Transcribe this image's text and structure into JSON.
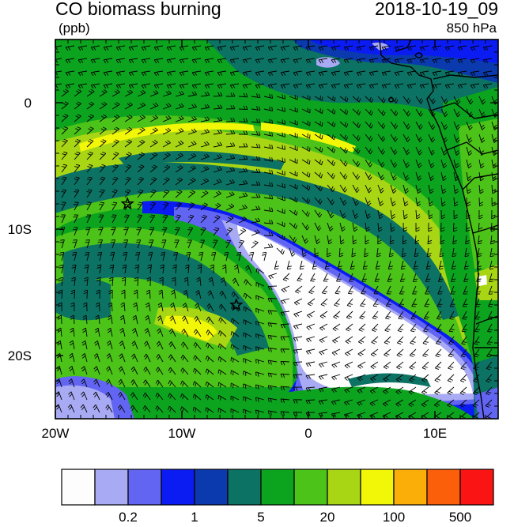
{
  "header": {
    "title_left": "CO biomass burning",
    "title_right": "2018-10-19_09",
    "units": "(ppb)",
    "level": "850 hPa"
  },
  "axes": {
    "x_ticks": [
      {
        "value": -20,
        "label": "20W"
      },
      {
        "value": -10,
        "label": "10W"
      },
      {
        "value": 0,
        "label": "0"
      },
      {
        "value": 10,
        "label": "10E"
      }
    ],
    "y_ticks": [
      {
        "value": 0,
        "label": "0"
      },
      {
        "value": -10,
        "label": "10S"
      },
      {
        "value": -20,
        "label": "20S"
      }
    ],
    "lon_range": [
      -20,
      15
    ],
    "lat_range": [
      -25,
      5
    ]
  },
  "colorbar": {
    "colors": [
      "#fdfdfd",
      "#a8aaf4",
      "#6265f2",
      "#0b1cf2",
      "#0a3aae",
      "#0c7263",
      "#0ca41e",
      "#4cc318",
      "#a8d614",
      "#f2f708",
      "#fbae08",
      "#fb5f0a",
      "#fb1414"
    ],
    "labels": [
      {
        "after_bin": 1,
        "text": "0.2"
      },
      {
        "after_bin": 3,
        "text": "1"
      },
      {
        "after_bin": 5,
        "text": "5"
      },
      {
        "after_bin": 7,
        "text": "20"
      },
      {
        "after_bin": 9,
        "text": "100"
      },
      {
        "after_bin": 11,
        "text": "500"
      }
    ]
  },
  "markers": [
    {
      "name": "star-marker-north",
      "lon": -14.3,
      "lat": -8.0
    },
    {
      "name": "star-marker-south",
      "lon": -5.7,
      "lat": -16.0
    }
  ]
}
